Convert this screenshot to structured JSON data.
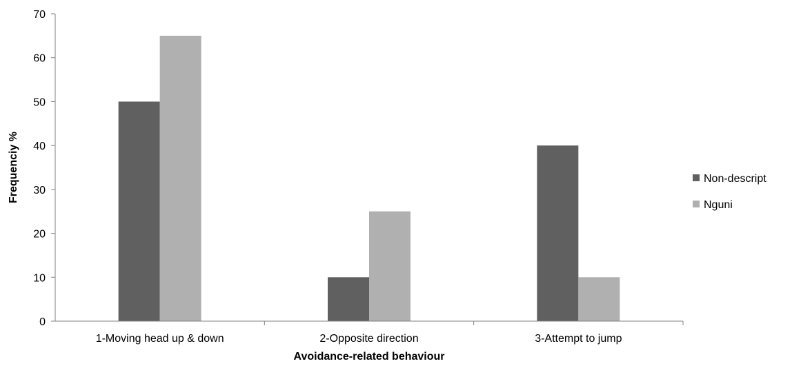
{
  "chart_data": {
    "type": "bar",
    "title": "",
    "xlabel": "Avoidance-related behaviour",
    "ylabel": "Frequenciy %",
    "categories": [
      "1-Moving head up & down",
      "2-Opposite direction",
      "3-Attempt to jump"
    ],
    "series": [
      {
        "name": "Non-descript",
        "values": [
          50,
          10,
          40
        ],
        "color": "#606060"
      },
      {
        "name": "Nguni",
        "values": [
          65,
          25,
          10
        ],
        "color": "#b0b0b0"
      }
    ],
    "ylim": [
      0,
      70
    ],
    "yticks": [
      0,
      10,
      20,
      30,
      40,
      50,
      60,
      70
    ],
    "grid": false,
    "legend": "right"
  }
}
